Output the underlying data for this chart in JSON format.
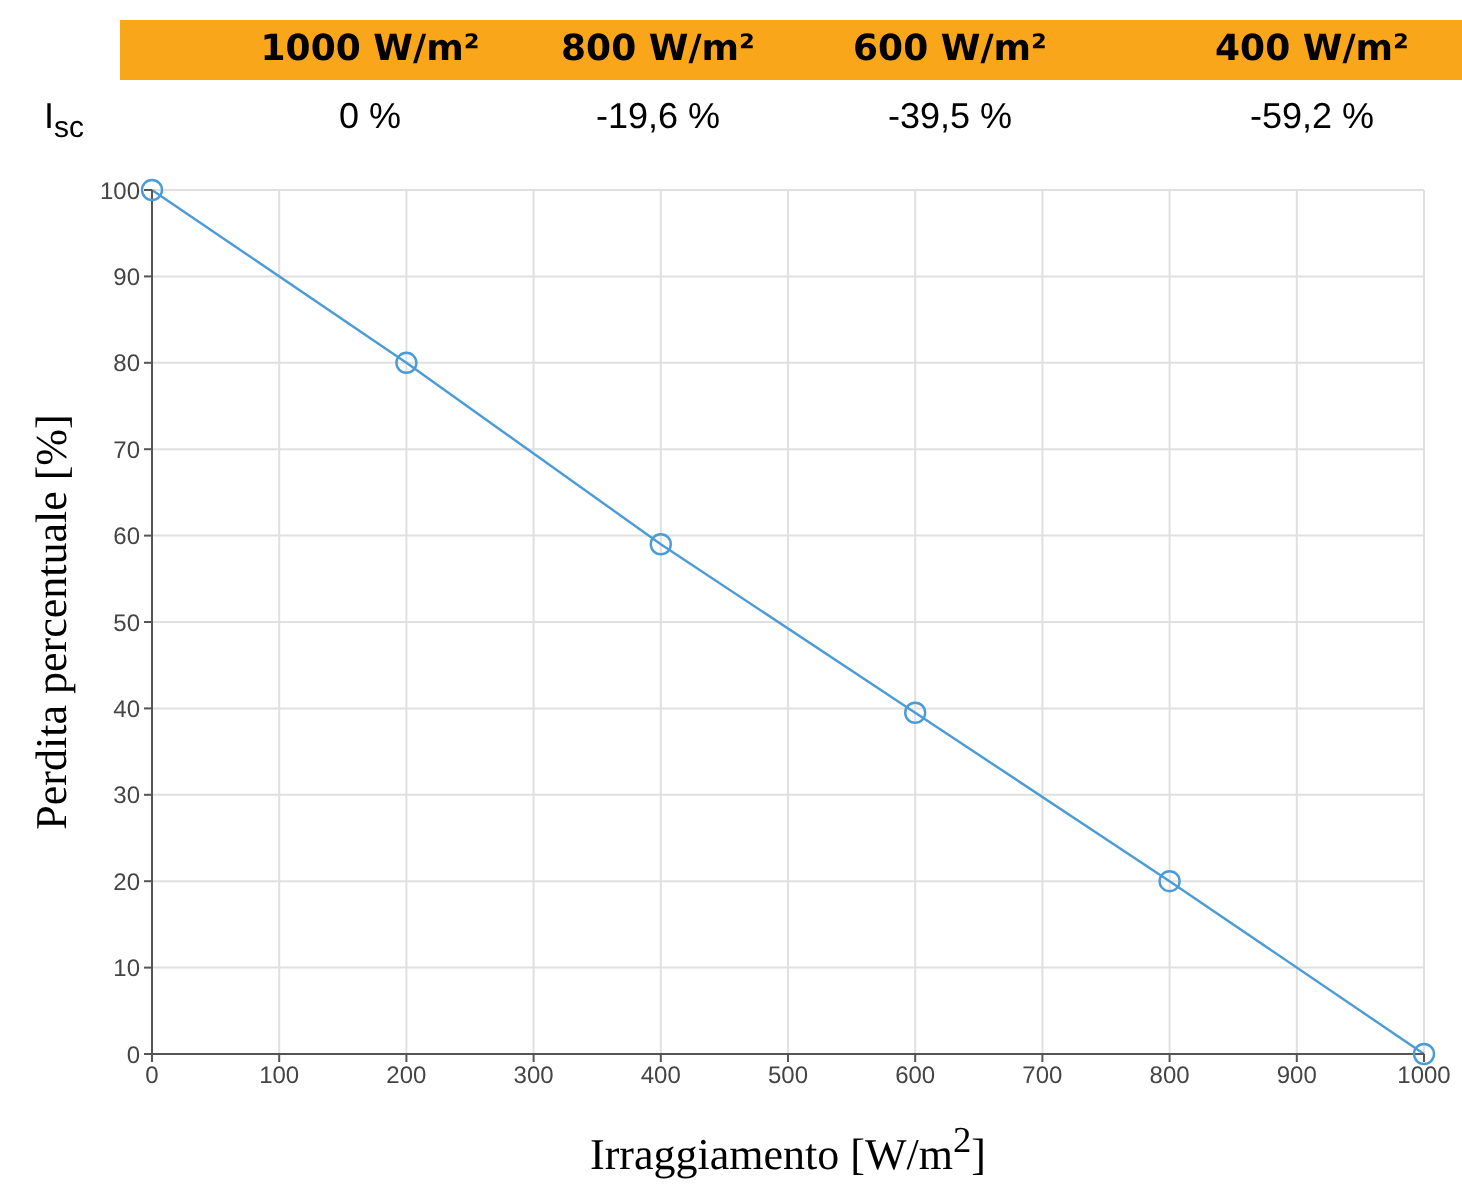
{
  "chart_data": {
    "type": "line",
    "xlabel": "Irraggiamento [W/m$^{2}$]",
    "ylabel": "Perdita percentuale [%]",
    "annotations": [
      "1000 W/m²",
      "800 W/m²",
      "600 W/m²",
      "400 W/m²",
      "I$_{sc}$",
      "0 %",
      "-19,6 %",
      "-39,5 %",
      "-59,2 %"
    ],
    "x": [
      0,
      200,
      400,
      600,
      800,
      1000
    ],
    "series": [
      {
        "color": "#4a9bd6",
        "values": [
          100,
          80,
          59,
          39.5,
          20,
          0
        ]
      }
    ],
    "xlim": [
      0,
      1000
    ],
    "xticks": [
      0,
      100,
      200,
      300,
      400,
      500,
      600,
      700,
      800,
      900,
      1000
    ],
    "ylim": [
      0,
      100
    ],
    "yticks": [
      0,
      10,
      20,
      30,
      40,
      50,
      60,
      70,
      80,
      90,
      100
    ],
    "grid": true,
    "marker": "circle",
    "line_style": "solid"
  }
}
